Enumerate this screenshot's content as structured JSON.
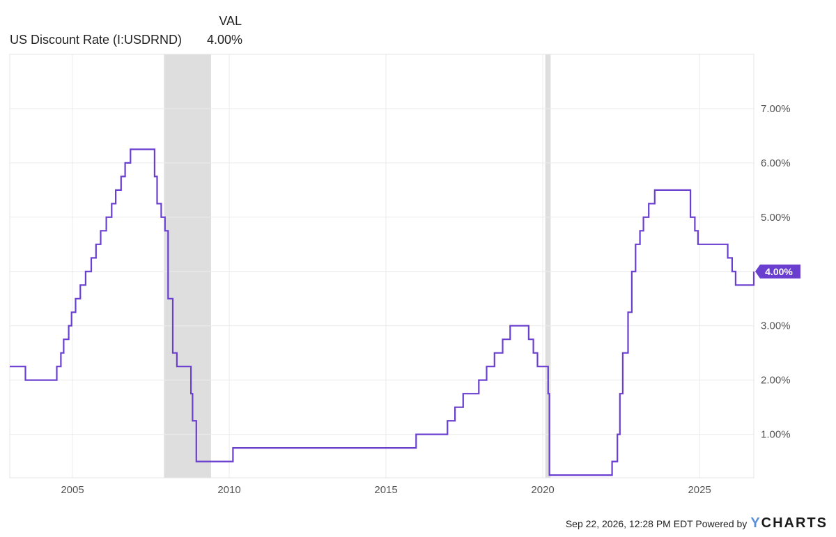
{
  "legend": {
    "val_header": "VAL",
    "series_name": "US Discount Rate (I:USDRND)",
    "series_value": "4.00%"
  },
  "footer": {
    "timestamp": "Sep 22, 2026, 12:28 PM EDT Powered by",
    "brand_y": "Y",
    "brand_rest": "CHARTS"
  },
  "colors": {
    "line": "#6a3fd0",
    "recession": "#dedede",
    "grid": "#ebebeb",
    "badge": "#6a3fd0"
  },
  "chart_data": {
    "type": "line",
    "title": "",
    "xlabel": "",
    "ylabel": "",
    "xlim": [
      2003.0,
      2026.73
    ],
    "ylim": [
      0.2,
      8.0
    ],
    "grid": true,
    "y_axis_side": "right",
    "x_ticks": [
      2005,
      2010,
      2015,
      2020,
      2025
    ],
    "x_tick_labels": [
      "2005",
      "2010",
      "2015",
      "2020",
      "2025"
    ],
    "y_ticks": [
      1,
      2,
      3,
      4,
      5,
      6,
      7
    ],
    "y_tick_labels": [
      "1.00%",
      "2.00%",
      "3.00%",
      "4.00%",
      "5.00%",
      "6.00%",
      "7.00%"
    ],
    "last_value_label": "4.00%",
    "recessions": [
      [
        2007.92,
        2009.42
      ],
      [
        2020.08,
        2020.25
      ]
    ],
    "series": [
      {
        "name": "US Discount Rate (I:USDRND)",
        "step": true,
        "points": [
          [
            2003.0,
            2.25
          ],
          [
            2003.5,
            2.0
          ],
          [
            2004.5,
            2.25
          ],
          [
            2004.63,
            2.5
          ],
          [
            2004.72,
            2.75
          ],
          [
            2004.88,
            3.0
          ],
          [
            2004.97,
            3.25
          ],
          [
            2005.1,
            3.5
          ],
          [
            2005.25,
            3.75
          ],
          [
            2005.42,
            4.0
          ],
          [
            2005.6,
            4.25
          ],
          [
            2005.75,
            4.5
          ],
          [
            2005.9,
            4.75
          ],
          [
            2006.08,
            5.0
          ],
          [
            2006.25,
            5.25
          ],
          [
            2006.38,
            5.5
          ],
          [
            2006.55,
            5.75
          ],
          [
            2006.68,
            6.0
          ],
          [
            2006.85,
            6.25
          ],
          [
            2007.62,
            5.75
          ],
          [
            2007.7,
            5.25
          ],
          [
            2007.83,
            5.0
          ],
          [
            2007.95,
            4.75
          ],
          [
            2008.05,
            3.5
          ],
          [
            2008.2,
            2.5
          ],
          [
            2008.33,
            2.25
          ],
          [
            2008.78,
            1.75
          ],
          [
            2008.83,
            1.25
          ],
          [
            2008.95,
            0.5
          ],
          [
            2010.12,
            0.75
          ],
          [
            2015.96,
            1.0
          ],
          [
            2016.96,
            1.25
          ],
          [
            2017.2,
            1.5
          ],
          [
            2017.46,
            1.75
          ],
          [
            2017.96,
            2.0
          ],
          [
            2018.21,
            2.25
          ],
          [
            2018.46,
            2.5
          ],
          [
            2018.72,
            2.75
          ],
          [
            2018.96,
            3.0
          ],
          [
            2019.55,
            2.75
          ],
          [
            2019.7,
            2.5
          ],
          [
            2019.83,
            2.25
          ],
          [
            2020.17,
            1.75
          ],
          [
            2020.21,
            0.25
          ],
          [
            2022.21,
            0.5
          ],
          [
            2022.38,
            1.0
          ],
          [
            2022.46,
            1.75
          ],
          [
            2022.55,
            2.5
          ],
          [
            2022.72,
            3.25
          ],
          [
            2022.84,
            4.0
          ],
          [
            2022.96,
            4.5
          ],
          [
            2023.1,
            4.75
          ],
          [
            2023.21,
            5.0
          ],
          [
            2023.38,
            5.25
          ],
          [
            2023.57,
            5.5
          ],
          [
            2024.71,
            5.0
          ],
          [
            2024.85,
            4.75
          ],
          [
            2024.95,
            4.5
          ],
          [
            2025.9,
            4.25
          ],
          [
            2026.04,
            4.0
          ],
          [
            2026.15,
            3.75
          ],
          [
            2026.73,
            4.0
          ]
        ]
      }
    ]
  }
}
